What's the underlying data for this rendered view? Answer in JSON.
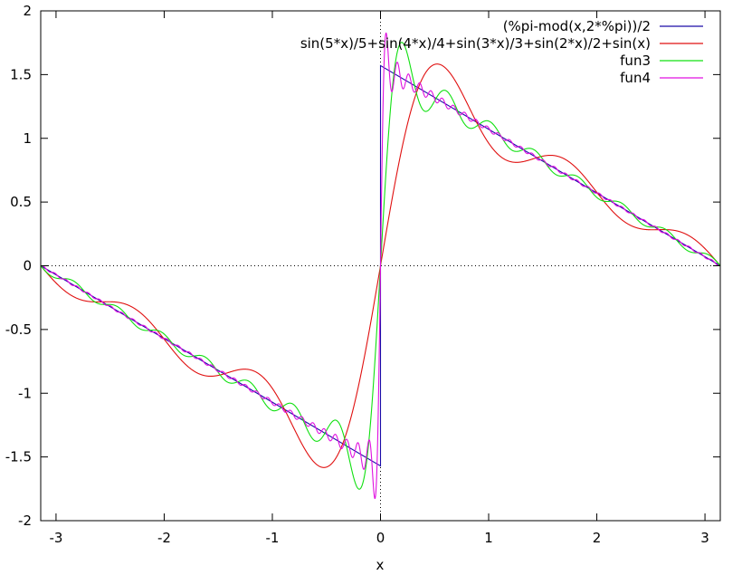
{
  "chart_data": {
    "type": "line",
    "title": "",
    "xlabel": "x",
    "ylabel": "",
    "xlim": [
      -3.14159,
      3.14159
    ],
    "ylim": [
      -2,
      2
    ],
    "x_ticks": [
      {
        "value": -3,
        "label": "-3"
      },
      {
        "value": -2,
        "label": "-2"
      },
      {
        "value": -1,
        "label": "-1"
      },
      {
        "value": 0,
        "label": "0"
      },
      {
        "value": 1,
        "label": "1"
      },
      {
        "value": 2,
        "label": "2"
      },
      {
        "value": 3,
        "label": "3"
      }
    ],
    "y_ticks": [
      {
        "value": -2,
        "label": "-2"
      },
      {
        "value": -1.5,
        "label": "-1.5"
      },
      {
        "value": -1,
        "label": "-1"
      },
      {
        "value": -0.5,
        "label": "-0.5"
      },
      {
        "value": 0,
        "label": "0"
      },
      {
        "value": 0.5,
        "label": "0.5"
      },
      {
        "value": 1,
        "label": "1"
      },
      {
        "value": 1.5,
        "label": "1.5"
      },
      {
        "value": 2,
        "label": "2"
      }
    ],
    "grid": false,
    "zero_axes": "dotted",
    "legend_position": "top-right",
    "series": [
      {
        "name": "(%pi-mod(x,2*%pi))/2",
        "color": "#1a0aa8",
        "terms": 0
      },
      {
        "name": "sin(5*x)/5+sin(4*x)/4+sin(3*x)/3+sin(2*x)/2+sin(x)",
        "color": "#e01010",
        "terms": 5
      },
      {
        "name": "fun3",
        "color": "#10e010",
        "terms": 15
      },
      {
        "name": "fun4",
        "color": "#e010e0",
        "terms": 60
      }
    ]
  }
}
